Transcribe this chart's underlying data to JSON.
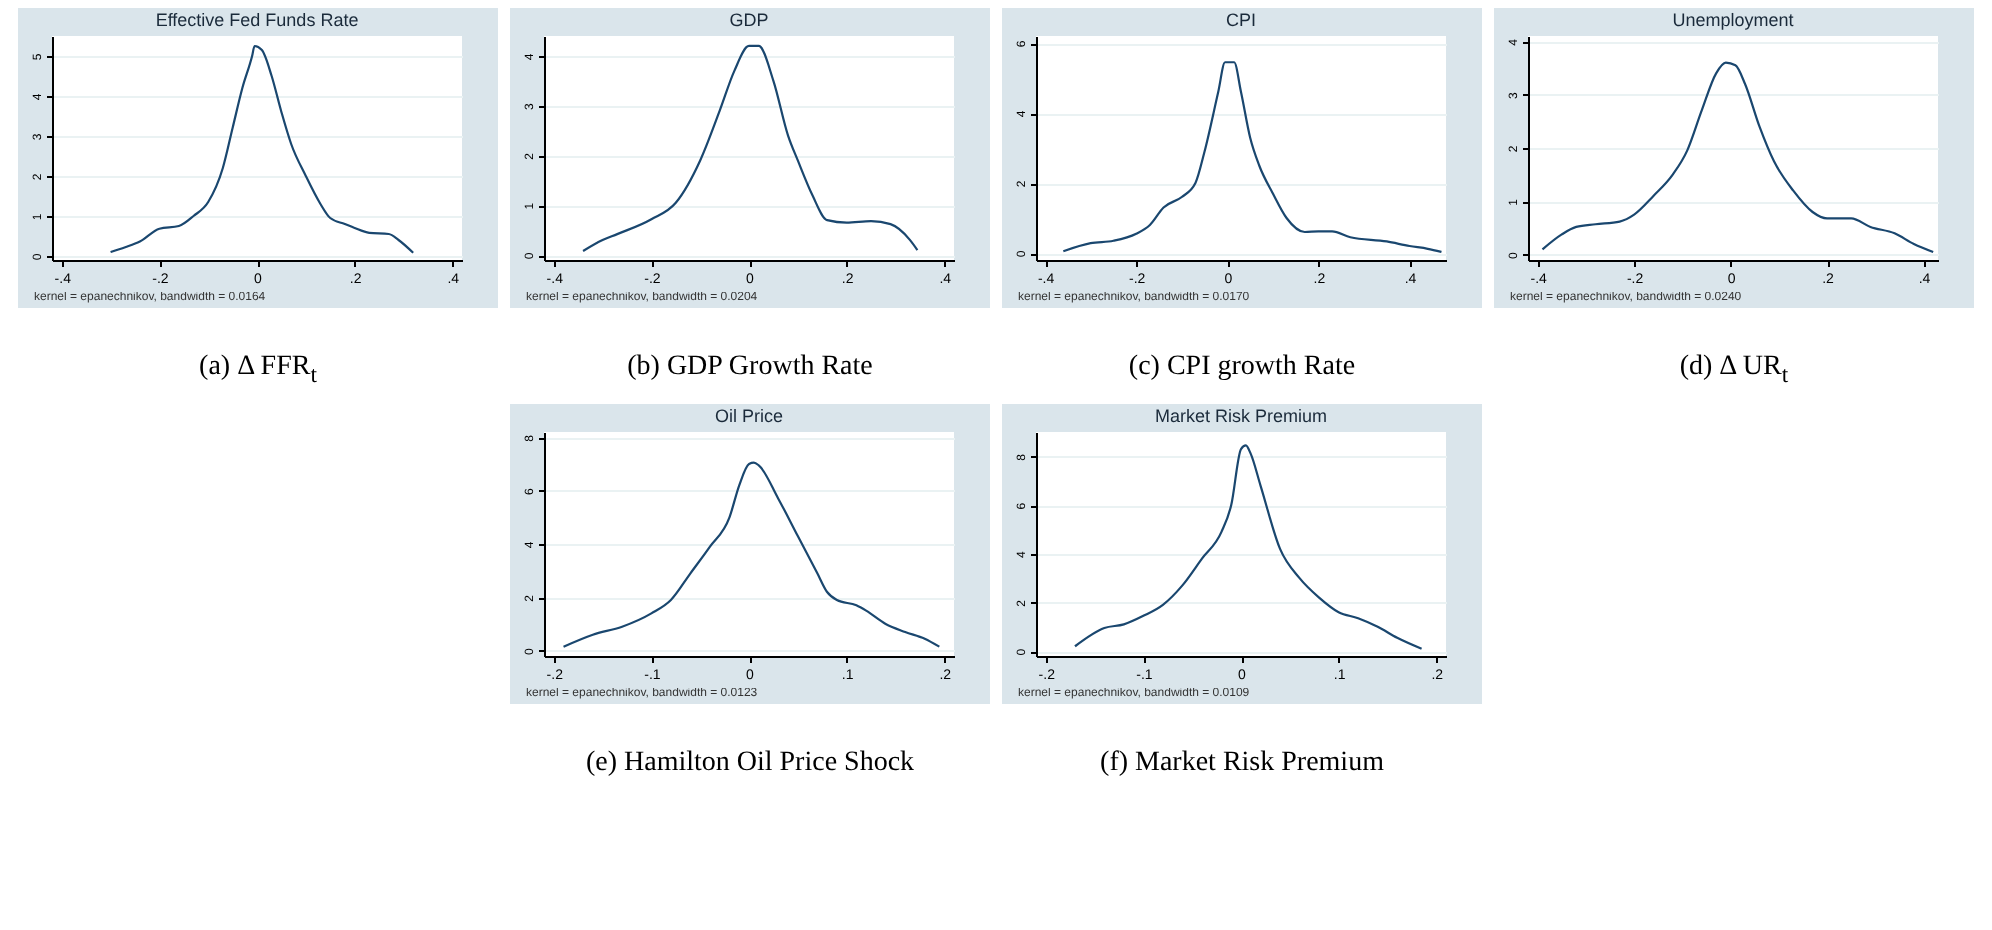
{
  "chart_data": [
    {
      "type": "line",
      "title": "Effective Fed Funds Rate",
      "annotations": [
        "kernel = epanechnikov, bandwidth = 0.0164",
        "(a) Δ FFR$_{t}$"
      ],
      "grid": "y",
      "xlim": [
        -0.42,
        0.42
      ],
      "xticks": [
        {
          "value": -0.4,
          "label": "-.4"
        },
        {
          "value": -0.2,
          "label": "-.2"
        },
        {
          "value": 0,
          "label": "0"
        },
        {
          "value": 0.2,
          "label": ".2"
        },
        {
          "value": 0.4,
          "label": ".4"
        }
      ],
      "ylim": [
        -0.1,
        5.5
      ],
      "yticks": [
        0,
        1,
        2,
        3,
        4,
        5
      ],
      "series": [
        {
          "color": "#1a476f",
          "x": [
            -0.3,
            -0.27,
            -0.24,
            -0.2,
            -0.16,
            -0.13,
            -0.1,
            -0.07,
            -0.05,
            -0.03,
            -0.01,
            -0.005,
            0.01,
            0.03,
            0.05,
            0.07,
            0.1,
            0.13,
            0.15,
            0.18,
            0.2,
            0.23,
            0.27,
            0.29,
            0.32
          ],
          "values": [
            0.1,
            0.22,
            0.36,
            0.68,
            0.75,
            1.0,
            1.35,
            2.2,
            3.2,
            4.2,
            5.0,
            5.25,
            5.15,
            4.5,
            3.6,
            2.8,
            2.0,
            1.3,
            0.95,
            0.8,
            0.7,
            0.58,
            0.55,
            0.4,
            0.08
          ]
        }
      ]
    },
    {
      "type": "line",
      "title": "GDP",
      "annotations": [
        "kernel = epanechnikov, bandwidth = 0.0204",
        "(b) GDP Growth Rate"
      ],
      "grid": "y",
      "xlim": [
        -0.42,
        0.42
      ],
      "xticks": [
        {
          "value": -0.4,
          "label": "-.4"
        },
        {
          "value": -0.2,
          "label": "-.2"
        },
        {
          "value": 0,
          "label": "0"
        },
        {
          "value": 0.2,
          "label": ".2"
        },
        {
          "value": 0.4,
          "label": ".4"
        }
      ],
      "ylim": [
        -0.1,
        4.4
      ],
      "yticks": [
        0,
        1,
        2,
        3,
        4
      ],
      "series": [
        {
          "color": "#1a476f",
          "x": [
            -0.34,
            -0.3,
            -0.27,
            -0.2,
            -0.15,
            -0.1,
            -0.06,
            -0.03,
            0,
            0.02,
            0.05,
            0.08,
            0.1,
            0.13,
            0.16,
            0.2,
            0.25,
            0.29,
            0.33,
            0.345
          ],
          "values": [
            0.08,
            0.3,
            0.42,
            0.72,
            1.05,
            1.9,
            2.9,
            3.7,
            4.2,
            4.2,
            3.5,
            2.4,
            1.9,
            1.2,
            0.7,
            0.65,
            0.68,
            0.62,
            0.3,
            0.1
          ]
        }
      ]
    },
    {
      "type": "line",
      "title": "CPI",
      "annotations": [
        "kernel = epanechnikov, bandwidth = 0.0170",
        "(c) CPI growth Rate"
      ],
      "grid": "y",
      "xlim": [
        -0.42,
        0.48
      ],
      "xticks": [
        {
          "value": -0.4,
          "label": "-.4"
        },
        {
          "value": -0.2,
          "label": "-.2"
        },
        {
          "value": 0,
          "label": "0"
        },
        {
          "value": 0.2,
          "label": ".2"
        },
        {
          "value": 0.4,
          "label": ".4"
        }
      ],
      "ylim": [
        -0.2,
        6.2
      ],
      "yticks": [
        0,
        2,
        4,
        6
      ],
      "series": [
        {
          "color": "#1a476f",
          "x": [
            -0.36,
            -0.3,
            -0.25,
            -0.2,
            -0.17,
            -0.14,
            -0.1,
            -0.07,
            -0.05,
            -0.02,
            -0.005,
            0.015,
            0.03,
            0.05,
            0.07,
            0.1,
            0.13,
            0.17,
            0.2,
            0.23,
            0.27,
            0.35,
            0.4,
            0.44,
            0.47
          ],
          "values": [
            0.05,
            0.28,
            0.35,
            0.55,
            0.8,
            1.3,
            1.6,
            2.0,
            2.9,
            4.6,
            5.45,
            5.45,
            4.6,
            3.3,
            2.5,
            1.7,
            1.0,
            0.6,
            0.62,
            0.62,
            0.45,
            0.33,
            0.2,
            0.12,
            0.03
          ]
        }
      ]
    },
    {
      "type": "line",
      "title": "Unemployment",
      "annotations": [
        "kernel = epanechnikov, bandwidth = 0.0240",
        "(d) Δ UR$_{t}$"
      ],
      "grid": "y",
      "xlim": [
        -0.42,
        0.43
      ],
      "xticks": [
        {
          "value": -0.4,
          "label": "-.4"
        },
        {
          "value": -0.2,
          "label": "-.2"
        },
        {
          "value": 0,
          "label": "0"
        },
        {
          "value": 0.2,
          "label": ".2"
        },
        {
          "value": 0.4,
          "label": ".4"
        }
      ],
      "ylim": [
        -0.1,
        4.1
      ],
      "yticks": [
        0,
        1,
        2,
        3,
        4
      ],
      "series": [
        {
          "color": "#1a476f",
          "x": [
            -0.39,
            -0.35,
            -0.32,
            -0.28,
            -0.23,
            -0.2,
            -0.16,
            -0.12,
            -0.09,
            -0.06,
            -0.03,
            -0.01,
            0.01,
            0.03,
            0.06,
            0.09,
            0.13,
            0.17,
            0.2,
            0.25,
            0.29,
            0.34,
            0.38,
            0.42
          ],
          "values": [
            0.1,
            0.38,
            0.52,
            0.57,
            0.62,
            0.75,
            1.1,
            1.5,
            1.95,
            2.7,
            3.4,
            3.6,
            3.55,
            3.2,
            2.4,
            1.75,
            1.2,
            0.8,
            0.68,
            0.68,
            0.52,
            0.4,
            0.2,
            0.05
          ]
        }
      ]
    },
    {
      "type": "line",
      "title": "Oil Price",
      "annotations": [
        "kernel = epanechnikov, bandwidth = 0.0123",
        "(e) Hamilton Oil Price Shock"
      ],
      "grid": "y",
      "xlim": [
        -0.21,
        0.21
      ],
      "xticks": [
        {
          "value": -0.2,
          "label": "-.2"
        },
        {
          "value": -0.1,
          "label": "-.1"
        },
        {
          "value": 0,
          "label": "0"
        },
        {
          "value": 0.1,
          "label": ".1"
        },
        {
          "value": 0.2,
          "label": ".2"
        }
      ],
      "ylim": [
        -0.2,
        8.2
      ],
      "yticks": [
        0,
        2,
        4,
        6,
        8
      ],
      "series": [
        {
          "color": "#1a476f",
          "x": [
            -0.19,
            -0.16,
            -0.13,
            -0.1,
            -0.08,
            -0.06,
            -0.04,
            -0.02,
            -0.01,
            0,
            0.005,
            0.01,
            0.03,
            0.05,
            0.07,
            0.08,
            0.09,
            0.11,
            0.12,
            0.14,
            0.16,
            0.18,
            0.195
          ],
          "values": [
            0.15,
            0.6,
            0.9,
            1.4,
            1.9,
            2.9,
            3.9,
            5.0,
            6.2,
            7.0,
            7.05,
            6.95,
            5.7,
            4.3,
            2.9,
            2.2,
            1.9,
            1.7,
            1.5,
            1.0,
            0.7,
            0.45,
            0.15
          ]
        }
      ]
    },
    {
      "type": "line",
      "title": "Market Risk Premium",
      "annotations": [
        "kernel = epanechnikov, bandwidth = 0.0109",
        "(f) Market Risk Premium"
      ],
      "grid": "y",
      "xlim": [
        -0.21,
        0.21
      ],
      "xticks": [
        {
          "value": -0.2,
          "label": "-.2"
        },
        {
          "value": -0.1,
          "label": "-.1"
        },
        {
          "value": 0,
          "label": "0"
        },
        {
          "value": 0.1,
          "label": ".1"
        },
        {
          "value": 0.2,
          "label": ".2"
        }
      ],
      "ylim": [
        -0.2,
        9
      ],
      "yticks": [
        0,
        2,
        4,
        6,
        8
      ],
      "series": [
        {
          "color": "#1a476f",
          "x": [
            -0.17,
            -0.14,
            -0.12,
            -0.1,
            -0.08,
            -0.06,
            -0.04,
            -0.02,
            -0.01,
            0,
            0.005,
            0.01,
            0.02,
            0.04,
            0.06,
            0.08,
            0.1,
            0.12,
            0.14,
            0.16,
            0.185
          ],
          "values": [
            0.2,
            0.95,
            1.1,
            1.45,
            1.9,
            2.7,
            3.8,
            4.9,
            6.0,
            8.3,
            8.45,
            8.1,
            6.8,
            4.2,
            3.0,
            2.2,
            1.6,
            1.35,
            1.0,
            0.55,
            0.1
          ]
        }
      ]
    }
  ]
}
